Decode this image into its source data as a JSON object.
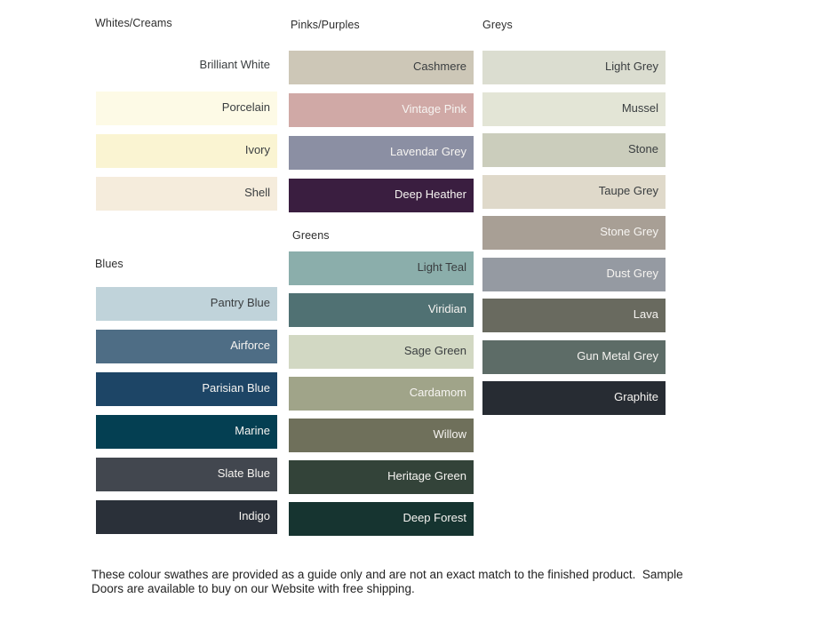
{
  "colors": {
    "background": "#ffffff",
    "heading": "#2e2e2e",
    "label_dark": "#3a3e40",
    "label_light": "#f6f4f1",
    "footer_text": "#222222"
  },
  "groups": [
    {
      "heading": "Whites/Creams",
      "swatches": [
        {
          "name": "Brilliant White",
          "color": "#ffffff",
          "text": "dark"
        },
        {
          "name": "Porcelain",
          "color": "#fdfae6",
          "text": "dark"
        },
        {
          "name": "Ivory",
          "color": "#faf4d2",
          "text": "dark"
        },
        {
          "name": "Shell",
          "color": "#f5ecdc",
          "text": "dark"
        }
      ]
    },
    {
      "heading": "Blues",
      "swatches": [
        {
          "name": "Pantry Blue",
          "color": "#c0d3da",
          "text": "dark"
        },
        {
          "name": "Airforce",
          "color": "#4e6d85",
          "text": "light"
        },
        {
          "name": "Parisian Blue",
          "color": "#1d4566",
          "text": "light"
        },
        {
          "name": "Marine",
          "color": "#043f52",
          "text": "light"
        },
        {
          "name": "Slate Blue",
          "color": "#42474f",
          "text": "light"
        },
        {
          "name": "Indigo",
          "color": "#2a3039",
          "text": "light"
        }
      ]
    },
    {
      "heading": "Pinks/Purples",
      "swatches": [
        {
          "name": "Cashmere",
          "color": "#cdc7b7",
          "text": "dark"
        },
        {
          "name": "Vintage Pink",
          "color": "#d0a9a6",
          "text": "light"
        },
        {
          "name": "Lavendar Grey",
          "color": "#8b8fa3",
          "text": "light"
        },
        {
          "name": "Deep Heather",
          "color": "#3a1e40",
          "text": "light"
        }
      ]
    },
    {
      "heading": "Greens",
      "swatches": [
        {
          "name": "Light Teal",
          "color": "#8baeab",
          "text": "dark"
        },
        {
          "name": "Viridian",
          "color": "#507173",
          "text": "light"
        },
        {
          "name": "Sage Green",
          "color": "#d2d8c3",
          "text": "dark"
        },
        {
          "name": "Cardamom",
          "color": "#a0a489",
          "text": "light"
        },
        {
          "name": "Willow",
          "color": "#6f705b",
          "text": "light"
        },
        {
          "name": "Heritage Green",
          "color": "#334339",
          "text": "light"
        },
        {
          "name": "Deep Forest",
          "color": "#163430",
          "text": "light"
        }
      ]
    },
    {
      "heading": "Greys",
      "swatches": [
        {
          "name": "Light Grey",
          "color": "#dbddd0",
          "text": "dark"
        },
        {
          "name": "Mussel",
          "color": "#e3e5d6",
          "text": "dark"
        },
        {
          "name": "Stone",
          "color": "#cbcdbc",
          "text": "dark"
        },
        {
          "name": "Taupe Grey",
          "color": "#dfd9ca",
          "text": "dark"
        },
        {
          "name": "Stone Grey",
          "color": "#a89f95",
          "text": "light"
        },
        {
          "name": "Dust Grey",
          "color": "#959aa2",
          "text": "light"
        },
        {
          "name": "Lava",
          "color": "#696a5f",
          "text": "light"
        },
        {
          "name": "Gun Metal Grey",
          "color": "#5d6c67",
          "text": "light"
        },
        {
          "name": "Graphite",
          "color": "#272c33",
          "text": "light"
        }
      ]
    }
  ],
  "footer": {
    "lines": [
      "These colour swathes are provided as a guide only and are not an exact match to the finished product.  Sample",
      "Doors are available to buy on our Website with free shipping."
    ]
  }
}
